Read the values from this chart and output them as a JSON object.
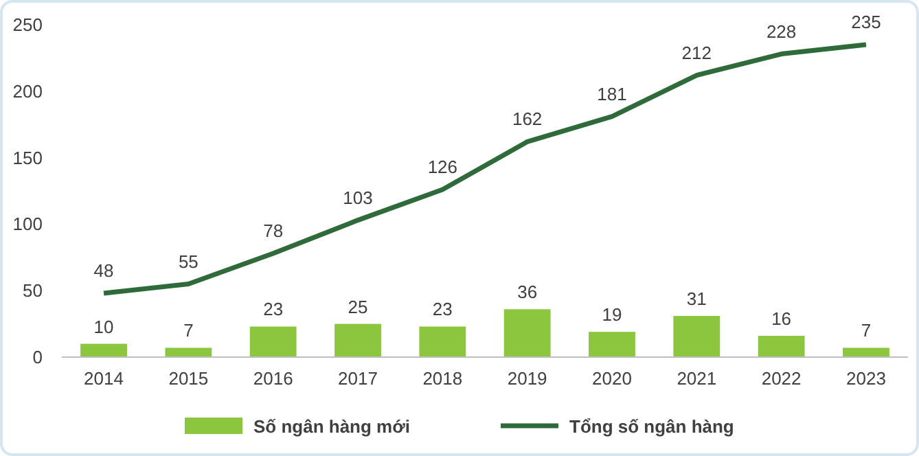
{
  "chart_data": {
    "type": "bar",
    "categories": [
      "2014",
      "2015",
      "2016",
      "2017",
      "2018",
      "2019",
      "2020",
      "2021",
      "2022",
      "2023"
    ],
    "series": [
      {
        "name": "Số ngân hàng mới",
        "color": "#8cc63f",
        "values": [
          10,
          7,
          23,
          25,
          23,
          36,
          19,
          31,
          16,
          7
        ]
      },
      {
        "name": "Tổng số ngân hàng",
        "type": "line",
        "color": "#2f6b3a",
        "values": [
          48,
          55,
          78,
          103,
          126,
          162,
          181,
          212,
          228,
          235
        ]
      }
    ],
    "ylim": [
      0,
      250
    ],
    "yticks": [
      0,
      50,
      100,
      150,
      200,
      250
    ],
    "data_labels": true,
    "legend": "bottom",
    "grid": false
  }
}
